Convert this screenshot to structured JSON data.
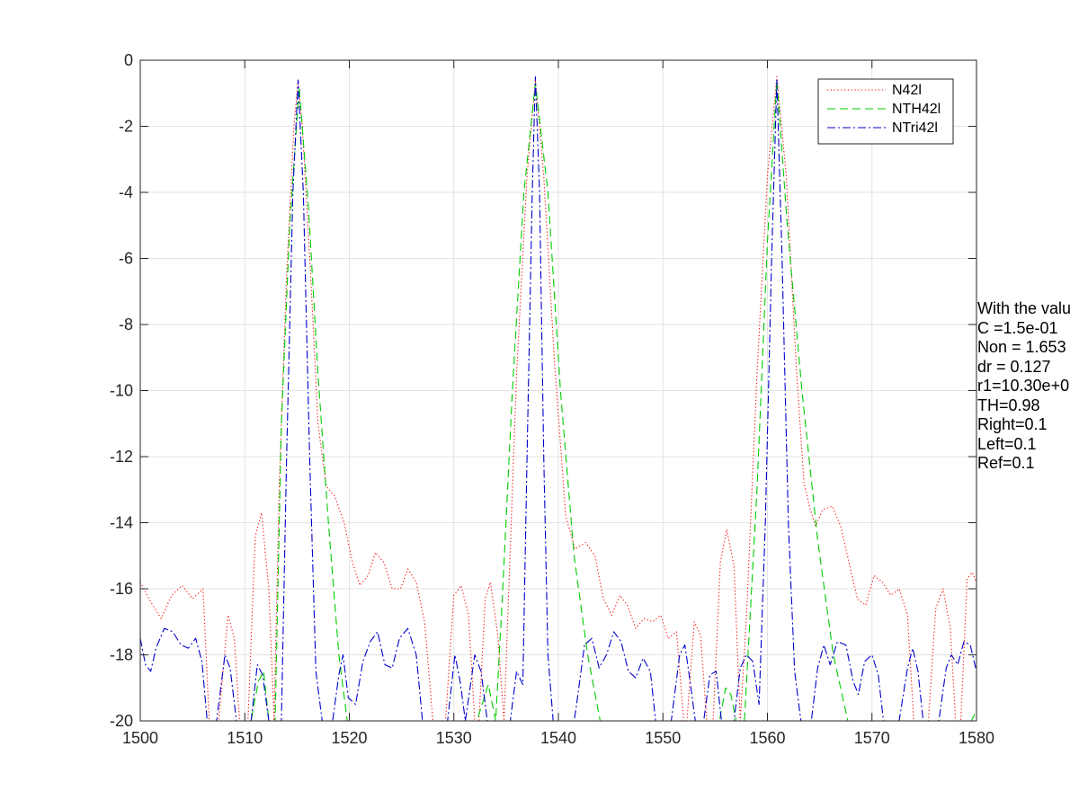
{
  "chart_data": {
    "type": "line",
    "title": "",
    "xlabel": "",
    "ylabel": "",
    "xlim": [
      1500,
      1580
    ],
    "ylim": [
      -20,
      0
    ],
    "xticks": [
      "1500",
      "1510",
      "1520",
      "1530",
      "1540",
      "1550",
      "1560",
      "1570",
      "1580"
    ],
    "yticks": [
      "0",
      "-2",
      "-4",
      "-6",
      "-8",
      "-10",
      "-12",
      "-14",
      "-16",
      "-18",
      "-20"
    ],
    "grid": true,
    "legend_position": "top-right",
    "series": [
      {
        "name": "N42l",
        "color": "#ff0000",
        "style": "dotted",
        "points": [
          [
            1500,
            -15.8
          ],
          [
            1501,
            -16.4
          ],
          [
            1502,
            -16.9
          ],
          [
            1503,
            -16.2
          ],
          [
            1504,
            -15.9
          ],
          [
            1505,
            -16.3
          ],
          [
            1506,
            -16.0
          ],
          [
            1506.6,
            -20
          ],
          [
            1507.5,
            -20
          ],
          [
            1508.4,
            -16.8
          ],
          [
            1509,
            -17.5
          ],
          [
            1509.5,
            -20
          ],
          [
            1510.3,
            -20
          ],
          [
            1511,
            -14.4
          ],
          [
            1511.6,
            -13.7
          ],
          [
            1512.3,
            -16.0
          ],
          [
            1512.8,
            -20
          ],
          [
            1513.3,
            -12.8
          ],
          [
            1514,
            -6.5
          ],
          [
            1514.7,
            -2.0
          ],
          [
            1515.1,
            -0.6
          ],
          [
            1515.5,
            -2.0
          ],
          [
            1516.3,
            -6.5
          ],
          [
            1517,
            -11.0
          ],
          [
            1517.8,
            -12.9
          ],
          [
            1518.6,
            -13.2
          ],
          [
            1519.5,
            -14.0
          ],
          [
            1520.3,
            -15.2
          ],
          [
            1521,
            -15.9
          ],
          [
            1521.8,
            -15.6
          ],
          [
            1522.5,
            -14.9
          ],
          [
            1523.3,
            -15.2
          ],
          [
            1524.1,
            -16.0
          ],
          [
            1524.9,
            -16.0
          ],
          [
            1525.6,
            -15.4
          ],
          [
            1526.4,
            -15.8
          ],
          [
            1527.2,
            -17.0
          ],
          [
            1528,
            -20
          ],
          [
            1529.2,
            -20
          ],
          [
            1530,
            -16.2
          ],
          [
            1530.7,
            -15.9
          ],
          [
            1531.4,
            -16.8
          ],
          [
            1532,
            -20
          ],
          [
            1532.4,
            -20
          ],
          [
            1533,
            -16.3
          ],
          [
            1533.5,
            -15.8
          ],
          [
            1534.2,
            -17.4
          ],
          [
            1534.8,
            -20
          ],
          [
            1536,
            -9.5
          ],
          [
            1537,
            -3.5
          ],
          [
            1537.8,
            -0.6
          ],
          [
            1538.6,
            -3.5
          ],
          [
            1539.6,
            -9.0
          ],
          [
            1540.7,
            -13.8
          ],
          [
            1541.6,
            -14.8
          ],
          [
            1542.6,
            -14.6
          ],
          [
            1543.5,
            -15.0
          ],
          [
            1544.3,
            -16.3
          ],
          [
            1545.1,
            -16.8
          ],
          [
            1545.9,
            -16.2
          ],
          [
            1546.6,
            -16.5
          ],
          [
            1547.4,
            -17.2
          ],
          [
            1548.2,
            -16.9
          ],
          [
            1549,
            -17.0
          ],
          [
            1549.8,
            -16.8
          ],
          [
            1550.5,
            -17.5
          ],
          [
            1551.3,
            -17.3
          ],
          [
            1552,
            -20
          ],
          [
            1552.3,
            -20
          ],
          [
            1553,
            -17.0
          ],
          [
            1553.6,
            -17.4
          ],
          [
            1554.2,
            -20
          ],
          [
            1554.8,
            -20
          ],
          [
            1555.5,
            -15.2
          ],
          [
            1556.1,
            -14.2
          ],
          [
            1556.8,
            -15.3
          ],
          [
            1557.4,
            -20
          ],
          [
            1558,
            -16.8
          ],
          [
            1559,
            -9.5
          ],
          [
            1560,
            -3.5
          ],
          [
            1560.9,
            -0.5
          ],
          [
            1561.8,
            -3.5
          ],
          [
            1562.8,
            -9.5
          ],
          [
            1563.5,
            -12.8
          ],
          [
            1564.1,
            -13.6
          ],
          [
            1564.6,
            -14.1
          ],
          [
            1565.3,
            -13.6
          ],
          [
            1566.2,
            -13.5
          ],
          [
            1567,
            -14.1
          ],
          [
            1567.8,
            -15.2
          ],
          [
            1568.6,
            -16.3
          ],
          [
            1569.4,
            -16.5
          ],
          [
            1570.2,
            -15.6
          ],
          [
            1571,
            -15.8
          ],
          [
            1571.8,
            -16.2
          ],
          [
            1572.6,
            -16.0
          ],
          [
            1573.4,
            -16.8
          ],
          [
            1574,
            -20
          ],
          [
            1575.4,
            -20
          ],
          [
            1576.1,
            -16.6
          ],
          [
            1576.8,
            -16.0
          ],
          [
            1577.5,
            -17.2
          ],
          [
            1578,
            -20
          ],
          [
            1578.5,
            -20
          ],
          [
            1579.1,
            -15.7
          ],
          [
            1579.6,
            -15.5
          ],
          [
            1580,
            -15.8
          ]
        ]
      },
      {
        "name": "NTH42l",
        "color": "#00cc00",
        "style": "dashed",
        "points": [
          [
            1500,
            -20
          ],
          [
            1510.6,
            -20
          ],
          [
            1511.3,
            -18.8
          ],
          [
            1511.8,
            -18.5
          ],
          [
            1512.3,
            -20
          ],
          [
            1512.9,
            -20
          ],
          [
            1513.5,
            -11.0
          ],
          [
            1514.3,
            -5.0
          ],
          [
            1515.2,
            -0.8
          ],
          [
            1516.1,
            -4.5
          ],
          [
            1517,
            -9.5
          ],
          [
            1518,
            -14.0
          ],
          [
            1519,
            -18.0
          ],
          [
            1519.8,
            -20
          ],
          [
            1532.2,
            -20
          ],
          [
            1533.3,
            -18.9
          ],
          [
            1534,
            -20
          ],
          [
            1534.6,
            -16.5
          ],
          [
            1535.6,
            -10.0
          ],
          [
            1536.7,
            -4.0
          ],
          [
            1537.8,
            -0.7
          ],
          [
            1539,
            -4.0
          ],
          [
            1540.2,
            -10.0
          ],
          [
            1541.5,
            -15.0
          ],
          [
            1542.8,
            -18.0
          ],
          [
            1544,
            -20
          ],
          [
            1555.4,
            -20
          ],
          [
            1556,
            -19.0
          ],
          [
            1556.5,
            -19.2
          ],
          [
            1557,
            -20
          ],
          [
            1557.8,
            -20
          ],
          [
            1559,
            -13.0
          ],
          [
            1560,
            -5.5
          ],
          [
            1560.9,
            -0.6
          ],
          [
            1561.9,
            -5.0
          ],
          [
            1563.3,
            -10.0
          ],
          [
            1564.8,
            -14.5
          ],
          [
            1566.3,
            -18.0
          ],
          [
            1567.7,
            -20
          ],
          [
            1579.5,
            -20
          ],
          [
            1580,
            -19.7
          ]
        ]
      },
      {
        "name": "NTri42l",
        "color": "#0000cc",
        "style": "dashdot",
        "points": [
          [
            1500,
            -17.5
          ],
          [
            1500.5,
            -18.3
          ],
          [
            1501,
            -18.5
          ],
          [
            1501.5,
            -17.8
          ],
          [
            1502.3,
            -17.2
          ],
          [
            1503.1,
            -17.3
          ],
          [
            1503.9,
            -17.7
          ],
          [
            1504.6,
            -17.8
          ],
          [
            1505.3,
            -17.5
          ],
          [
            1505.9,
            -18.2
          ],
          [
            1506.4,
            -20
          ],
          [
            1507.3,
            -20
          ],
          [
            1508.1,
            -18.0
          ],
          [
            1508.6,
            -18.4
          ],
          [
            1509.2,
            -20
          ],
          [
            1510.6,
            -20
          ],
          [
            1511.2,
            -18.3
          ],
          [
            1511.7,
            -18.6
          ],
          [
            1512.3,
            -20
          ],
          [
            1513.5,
            -20
          ],
          [
            1514,
            -12.0
          ],
          [
            1514.6,
            -4.0
          ],
          [
            1515.1,
            -0.6
          ],
          [
            1515.6,
            -4.0
          ],
          [
            1516.2,
            -12.0
          ],
          [
            1516.8,
            -18.5
          ],
          [
            1517.4,
            -20
          ],
          [
            1518.4,
            -20
          ],
          [
            1519,
            -18.6
          ],
          [
            1519.4,
            -18.0
          ],
          [
            1519.9,
            -19.3
          ],
          [
            1520.6,
            -19.5
          ],
          [
            1521.3,
            -18.2
          ],
          [
            1522,
            -17.6
          ],
          [
            1522.7,
            -17.3
          ],
          [
            1523.4,
            -18.3
          ],
          [
            1524.1,
            -18.4
          ],
          [
            1524.8,
            -17.5
          ],
          [
            1525.6,
            -17.2
          ],
          [
            1526.4,
            -18.0
          ],
          [
            1527,
            -20
          ],
          [
            1529.4,
            -20
          ],
          [
            1530.1,
            -18.0
          ],
          [
            1530.6,
            -18.8
          ],
          [
            1531.1,
            -20
          ],
          [
            1532,
            -18.0
          ],
          [
            1532.6,
            -18.5
          ],
          [
            1533.2,
            -20
          ],
          [
            1535.4,
            -20
          ],
          [
            1536,
            -18.5
          ],
          [
            1536.6,
            -18.9
          ],
          [
            1537,
            -12.0
          ],
          [
            1537.5,
            -4.0
          ],
          [
            1537.8,
            -0.5
          ],
          [
            1538.2,
            -4.0
          ],
          [
            1538.6,
            -12.0
          ],
          [
            1539,
            -18.0
          ],
          [
            1539.5,
            -20
          ],
          [
            1541.5,
            -20
          ],
          [
            1541.7,
            -19.6
          ],
          [
            1542.5,
            -17.7
          ],
          [
            1543.2,
            -17.5
          ],
          [
            1543.9,
            -18.4
          ],
          [
            1544.6,
            -18.0
          ],
          [
            1545.3,
            -17.3
          ],
          [
            1546,
            -17.6
          ],
          [
            1546.7,
            -18.5
          ],
          [
            1547.4,
            -18.7
          ],
          [
            1548.1,
            -18.1
          ],
          [
            1548.8,
            -18.5
          ],
          [
            1549.3,
            -20
          ],
          [
            1550.8,
            -20
          ],
          [
            1551.6,
            -18.0
          ],
          [
            1552.1,
            -17.7
          ],
          [
            1552.6,
            -18.8
          ],
          [
            1553.1,
            -20
          ],
          [
            1553.9,
            -20
          ],
          [
            1554.5,
            -18.6
          ],
          [
            1555.1,
            -18.5
          ],
          [
            1555.6,
            -20
          ],
          [
            1556.8,
            -20
          ],
          [
            1557.4,
            -18.4
          ],
          [
            1558,
            -18.0
          ],
          [
            1558.6,
            -18.2
          ],
          [
            1559.2,
            -19.5
          ],
          [
            1559.8,
            -14.0
          ],
          [
            1560.4,
            -6.0
          ],
          [
            1560.9,
            -0.6
          ],
          [
            1561.4,
            -6.0
          ],
          [
            1562,
            -14.0
          ],
          [
            1562.6,
            -18.5
          ],
          [
            1563.2,
            -20
          ],
          [
            1564.2,
            -20
          ],
          [
            1564.8,
            -18.4
          ],
          [
            1565.4,
            -17.7
          ],
          [
            1566,
            -18.3
          ],
          [
            1566.7,
            -17.6
          ],
          [
            1567.5,
            -17.7
          ],
          [
            1568.2,
            -18.8
          ],
          [
            1568.7,
            -19.2
          ],
          [
            1569.3,
            -18.2
          ],
          [
            1570,
            -18.0
          ],
          [
            1570.6,
            -18.6
          ],
          [
            1571.1,
            -20
          ],
          [
            1572.6,
            -20
          ],
          [
            1573.4,
            -18.4
          ],
          [
            1573.9,
            -17.8
          ],
          [
            1574.4,
            -18.5
          ],
          [
            1574.9,
            -20
          ],
          [
            1576.4,
            -20
          ],
          [
            1577.1,
            -18.4
          ],
          [
            1577.6,
            -18.0
          ],
          [
            1578.2,
            -18.3
          ],
          [
            1578.8,
            -17.6
          ],
          [
            1579.4,
            -17.7
          ],
          [
            1580,
            -18.5
          ]
        ]
      }
    ],
    "annotations": [
      "With the valu",
      "C =1.5e-01",
      "Non = 1.653",
      "dr = 0.127",
      "r1=10.30e+0",
      "TH=0.98",
      "Right=0.1",
      "Left=0.1",
      "Ref=0.1"
    ]
  }
}
